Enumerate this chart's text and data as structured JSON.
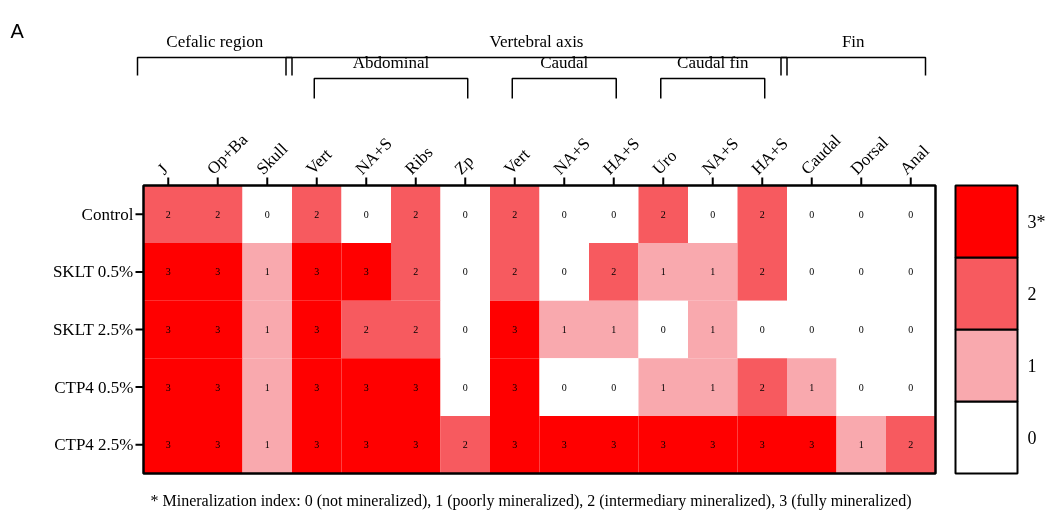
{
  "chart_data": {
    "type": "heatmap",
    "categories": [
      "J",
      "Op+Ba",
      "Skull",
      "Vert",
      "NA+S",
      "Ribs",
      "Zp",
      "Vert",
      "NA+S",
      "HA+S",
      "Uro",
      "NA+S",
      "HA+S",
      "Caudal",
      "Dorsal",
      "Anal"
    ],
    "y_categories": [
      "Control",
      "SKLT 0.5%",
      "SKLT 2.5%",
      "CTP4 0.5%",
      "CTP4 2.5%"
    ],
    "cells": [
      [
        2,
        2,
        0,
        2,
        0,
        2,
        0,
        2,
        0,
        0,
        2,
        0,
        2,
        0,
        0,
        0
      ],
      [
        3,
        3,
        1,
        3,
        3,
        2,
        0,
        2,
        0,
        2,
        1,
        1,
        2,
        0,
        0,
        0
      ],
      [
        3,
        3,
        1,
        3,
        2,
        2,
        0,
        3,
        1,
        1,
        0,
        1,
        0,
        0,
        0,
        0
      ],
      [
        3,
        3,
        1,
        3,
        3,
        3,
        0,
        3,
        0,
        0,
        1,
        1,
        2,
        1,
        0,
        0
      ],
      [
        3,
        3,
        1,
        3,
        3,
        3,
        2,
        3,
        3,
        3,
        3,
        3,
        3,
        3,
        1,
        2
      ]
    ],
    "data_labels": true,
    "colors": [
      "#ffffff",
      "#f9a9ae",
      "#f75a5f",
      "#ff0000"
    ],
    "clim": [
      -0.5,
      3.5
    ],
    "cticks": [
      0,
      1,
      2,
      {
        "value": 3,
        "label": "3*"
      }
    ],
    "annotations": [
      "A",
      "Cefalic region",
      "Vertebral axis",
      "Fin",
      "Abdominal",
      "Caudal",
      "Caudal fin",
      "* Mineralization index: 0 (not mineralized), 1 (poorly mineralized), 2 (intermediary mineralized), 3 (fully mineralized)"
    ]
  }
}
